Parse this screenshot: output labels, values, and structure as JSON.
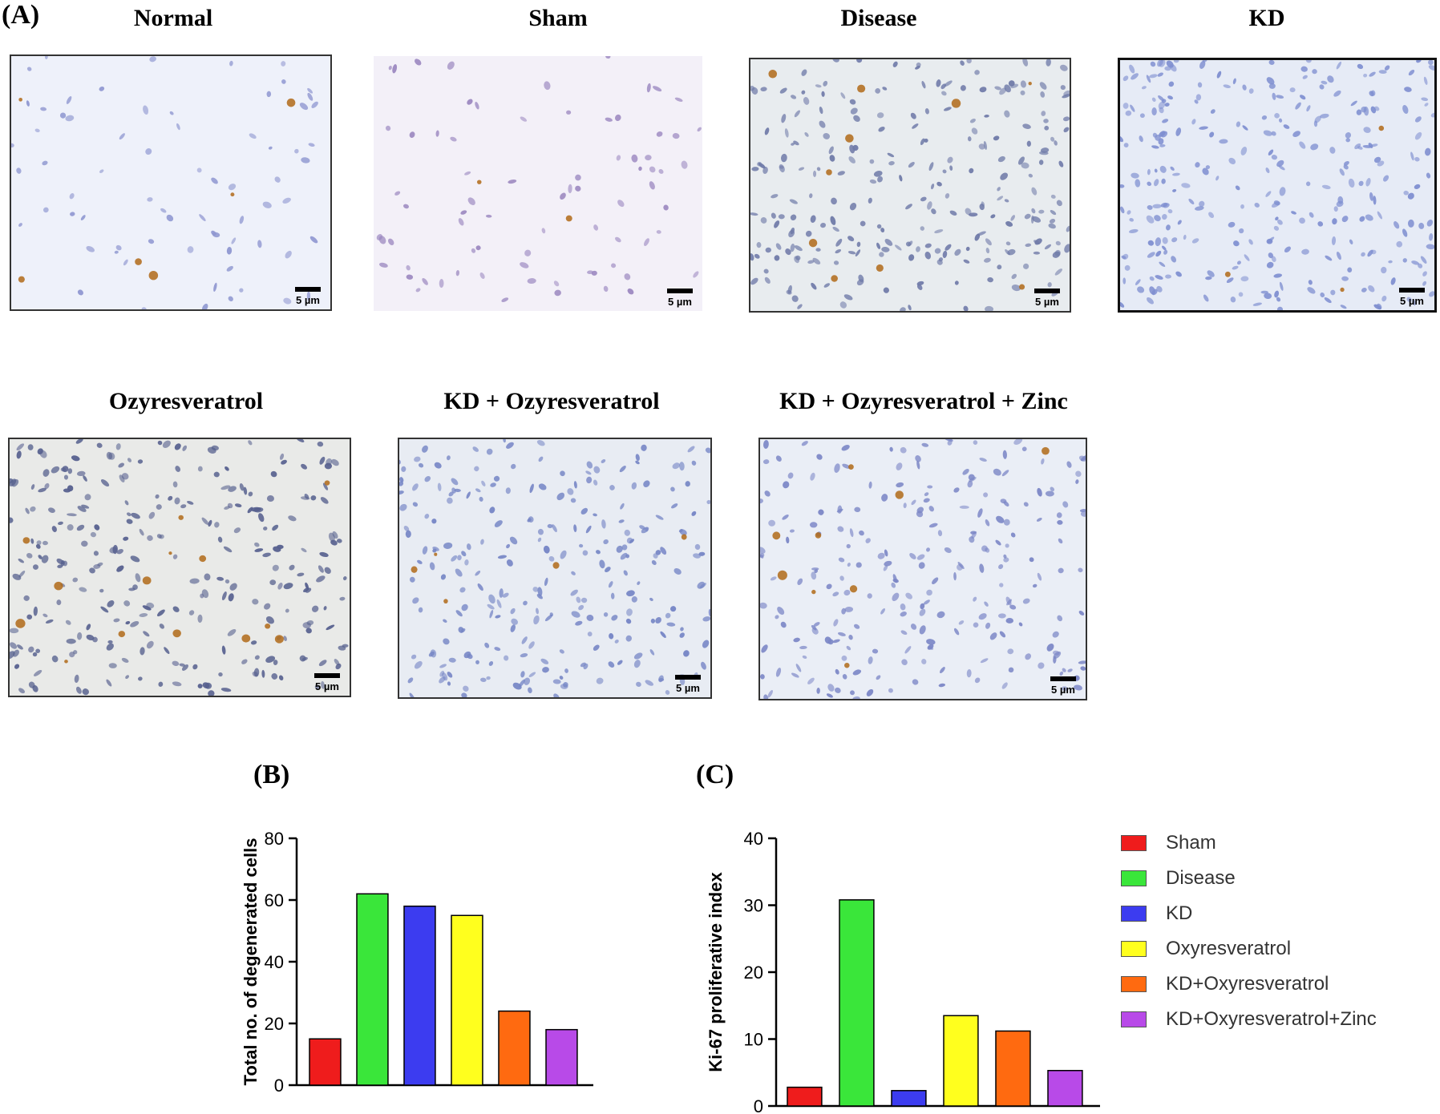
{
  "panel_labels": {
    "a": "(A)",
    "b": "(B)",
    "c": "(C)"
  },
  "micrographs": [
    {
      "title": "Normal",
      "scale": "5 µm",
      "bg": "#eef1fa",
      "cell": "#8e96d0",
      "brown": 6,
      "density": 70
    },
    {
      "title": "Sham",
      "scale": "5 µm",
      "bg": "#f3f0f8",
      "cell": "#9a86bf",
      "brown": 2,
      "density": 75
    },
    {
      "title": "Disease",
      "scale": "5 µm",
      "bg": "#e8ecef",
      "cell": "#6f7aa8",
      "brown": 10,
      "density": 260
    },
    {
      "title": "KD",
      "scale": "5 µm",
      "bg": "#e6ebf6",
      "cell": "#7e8ed0",
      "brown": 3,
      "density": 300
    },
    {
      "title": "Ozyresveratrol",
      "scale": "5 µm",
      "bg": "#e9eae8",
      "cell": "#56608e",
      "brown": 14,
      "density": 280
    },
    {
      "title": "KD + Ozyresveratrol",
      "scale": "5 µm",
      "bg": "#e8ecf3",
      "cell": "#7585c5",
      "brown": 5,
      "density": 260
    },
    {
      "title": "KD + Ozyresveratrol + Zinc",
      "scale": "5 µm",
      "bg": "#eaeef6",
      "cell": "#7b86c6",
      "brown": 9,
      "density": 240
    }
  ],
  "legend": [
    {
      "label": "Sham",
      "color": "#ef1c1c"
    },
    {
      "label": "Disease",
      "color": "#3ae63a"
    },
    {
      "label": "KD",
      "color": "#3c3cf0"
    },
    {
      "label": "Oxyresveratrol",
      "color": "#ffff1e"
    },
    {
      "label": "KD+Oxyresveratrol",
      "color": "#ff6a10"
    },
    {
      "label": "KD+Oxyresveratrol+Zinc",
      "color": "#b84ae8"
    }
  ],
  "chart_data": [
    {
      "type": "bar",
      "panel": "(B)",
      "ylabel": "Total no. of degenerated cells",
      "ylim": [
        0,
        80
      ],
      "yticks": [
        0,
        20,
        40,
        60,
        80
      ],
      "categories": [
        "Sham",
        "Disease",
        "KD",
        "Oxyresveratrol",
        "KD+Oxyresveratrol",
        "KD+Oxyresveratrol+Zinc"
      ],
      "values": [
        15,
        62,
        58,
        55,
        24,
        18
      ],
      "colors": [
        "#ef1c1c",
        "#3ae63a",
        "#3c3cf0",
        "#ffff1e",
        "#ff6a10",
        "#b84ae8"
      ]
    },
    {
      "type": "bar",
      "panel": "(C)",
      "ylabel": "Ki-67 proliferative index",
      "ylim": [
        0,
        40
      ],
      "yticks": [
        0,
        10,
        20,
        30,
        40
      ],
      "categories": [
        "Sham",
        "Disease",
        "KD",
        "Oxyresveratrol",
        "KD+Oxyresveratrol",
        "KD+Oxyresveratrol+Zinc"
      ],
      "values": [
        2.8,
        30.8,
        2.3,
        13.5,
        11.2,
        5.3
      ],
      "colors": [
        "#ef1c1c",
        "#3ae63a",
        "#3c3cf0",
        "#ffff1e",
        "#ff6a10",
        "#b84ae8"
      ]
    }
  ]
}
